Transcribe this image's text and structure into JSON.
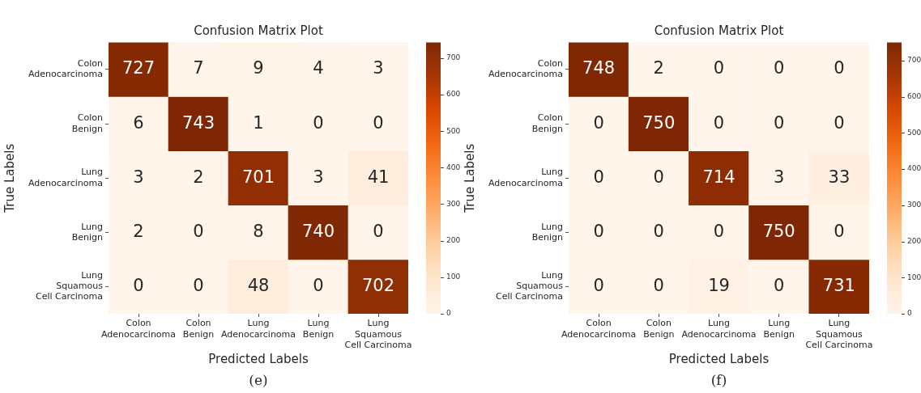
{
  "chart_data": [
    {
      "type": "heatmap",
      "title": "Confusion Matrix Plot",
      "xlabel": "Predicted Labels",
      "ylabel": "True Labels",
      "categories": [
        "Colon\nAdenocarcinoma",
        "Colon\nBenign",
        "Lung\nAdenocarcinoma",
        "Lung\nBenign",
        "Lung\nSquamous\nCell Carcinoma"
      ],
      "y_categories": [
        "Colon\nAdenocarcinoma",
        "Colon\nBenign",
        "Lung\nAdenocarcinoma",
        "Lung\nBenign",
        "Lung\nSquamous\nCell Carcinoma"
      ],
      "cells": [
        [
          727,
          7,
          9,
          4,
          3
        ],
        [
          6,
          743,
          1,
          0,
          0
        ],
        [
          3,
          2,
          701,
          3,
          41
        ],
        [
          2,
          0,
          8,
          740,
          0
        ],
        [
          0,
          0,
          48,
          0,
          702
        ]
      ],
      "data_labels": true,
      "clim": [
        0,
        743
      ],
      "cticks": [
        0,
        100,
        200,
        300,
        400,
        500,
        600,
        700
      ],
      "annotations": [
        "(e)"
      ]
    },
    {
      "type": "heatmap",
      "title": "Confusion Matrix Plot",
      "xlabel": "Predicted Labels",
      "ylabel": "True Labels",
      "categories": [
        "Colon\nAdenocarcinoma",
        "Colon\nBenign",
        "Lung\nAdenocarcinoma",
        "Lung\nBenign",
        "Lung\nSquamous\nCell Carcinoma"
      ],
      "y_categories": [
        "Colon\nAdenocarcinoma",
        "Colon\nBenign",
        "Lung\nAdenocarcinoma",
        "Lung\nBenign",
        "Lung\nSquamous\nCell Carcinoma"
      ],
      "cells": [
        [
          748,
          2,
          0,
          0,
          0
        ],
        [
          0,
          750,
          0,
          0,
          0
        ],
        [
          0,
          0,
          714,
          3,
          33
        ],
        [
          0,
          0,
          0,
          750,
          0
        ],
        [
          0,
          0,
          19,
          0,
          731
        ]
      ],
      "data_labels": true,
      "clim": [
        0,
        750
      ],
      "cticks": [
        0,
        100,
        200,
        300,
        400,
        500,
        600,
        700
      ],
      "annotations": [
        "(f)"
      ]
    }
  ]
}
